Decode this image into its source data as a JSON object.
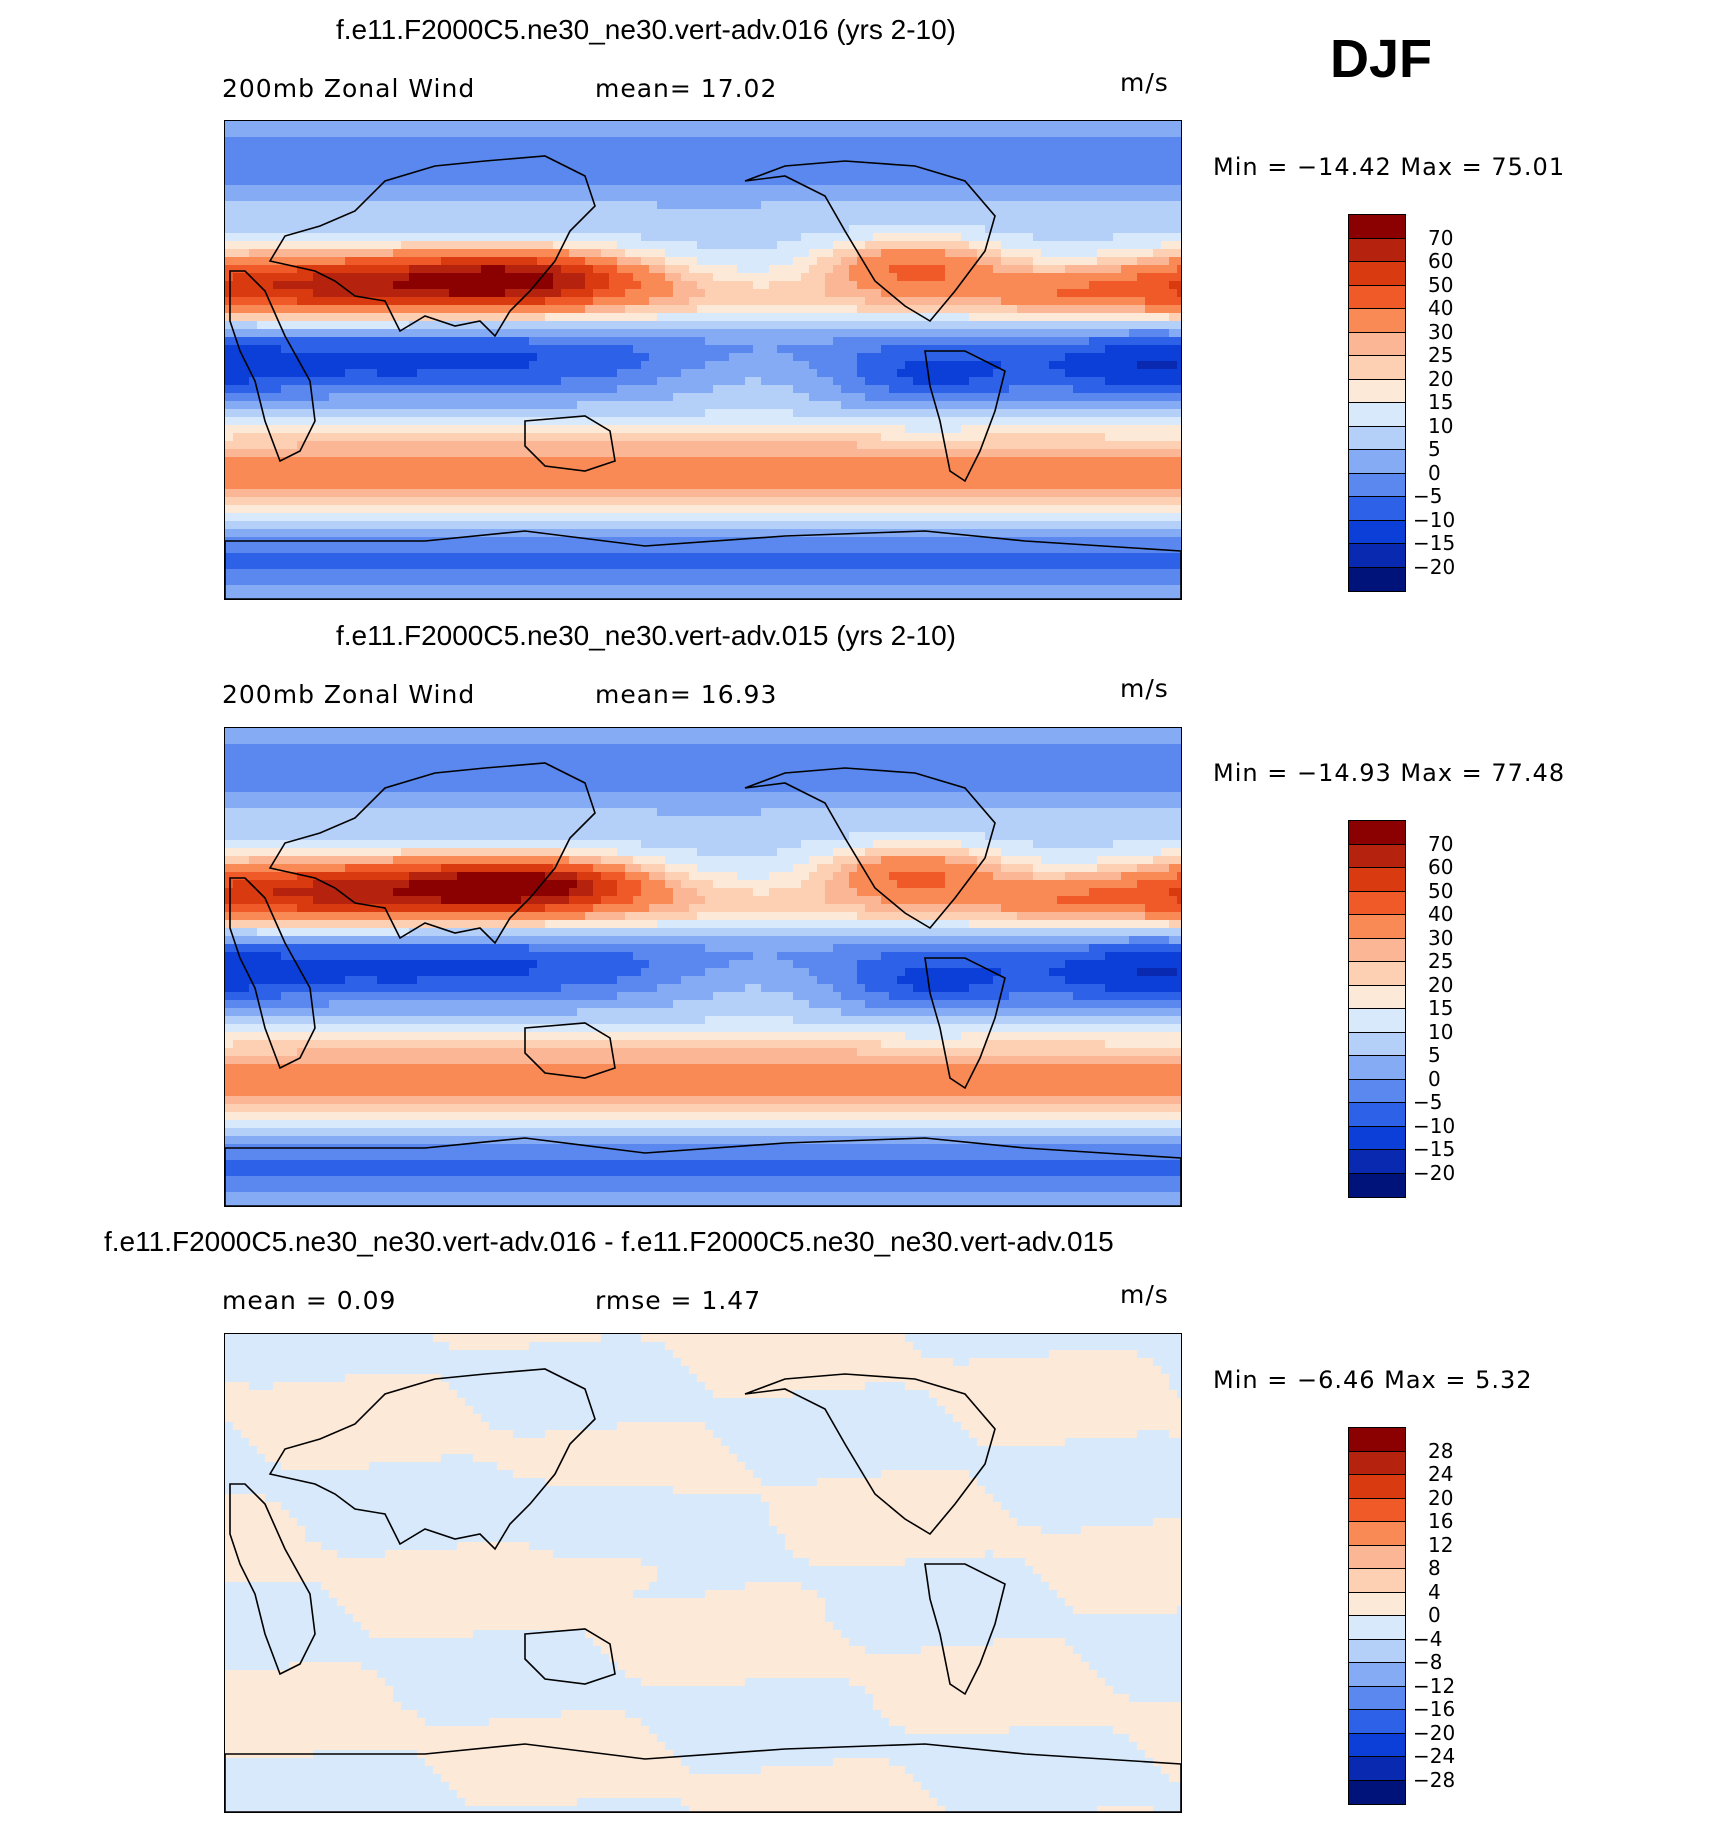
{
  "season": "DJF",
  "chart_data": [
    {
      "type": "heatmap",
      "title": "f.e11.F2000C5.ne30_ne30.vert-adv.016 (yrs 2-10)",
      "left_label": "200mb Zonal Wind",
      "center_label": "mean=   17.02",
      "units": "m/s",
      "stats": {
        "min_label": "Min  =  −14.42  Max  =    75.01",
        "min": -14.42,
        "max": 75.01
      },
      "colorbar": {
        "levels": [
          "70",
          "60",
          "50",
          "40",
          "30",
          "25",
          "20",
          "15",
          "10",
          "5",
          "0",
          "−5",
          "−10",
          "−15",
          "−20"
        ],
        "colors": [
          "#8b0000",
          "#b5220d",
          "#d93a10",
          "#f05a28",
          "#fa8a55",
          "#fbb696",
          "#fdd0b4",
          "#fde9d7",
          "#d7e9fb",
          "#b4cff8",
          "#86abf5",
          "#5a88ef",
          "#2d62e8",
          "#0c3ed8",
          "#0929b0",
          "#00137a"
        ]
      },
      "field": {
        "jets": [
          [
            -130,
            22,
            12,
            5,
            70
          ],
          [
            -60,
            22,
            18,
            7,
            45
          ],
          [
            20,
            40,
            25,
            6,
            40
          ],
          [
            60,
            10,
            40,
            8,
            25
          ],
          [
            -20,
            22,
            10,
            4,
            55
          ]
        ],
        "blue_patches": [
          [
            -100,
            -100,
            0,
            0,
            0
          ]
        ],
        "south_jets": [
          [
            -45,
            30,
            10,
            20,
            30
          ]
        ],
        "anomalies": []
      }
    },
    {
      "type": "heatmap",
      "title": "f.e11.F2000C5.ne30_ne30.vert-adv.015 (yrs 2-10)",
      "left_label": "200mb Zonal Wind",
      "center_label": "mean=   16.93",
      "units": "m/s",
      "stats": {
        "min_label": "Min  =  −14.93  Max  =    77.48",
        "min": -14.93,
        "max": 77.48
      },
      "colorbar": {
        "levels": [
          "70",
          "60",
          "50",
          "40",
          "30",
          "25",
          "20",
          "15",
          "10",
          "5",
          "0",
          "−5",
          "−10",
          "−15",
          "−20"
        ],
        "colors": [
          "#8b0000",
          "#b5220d",
          "#d93a10",
          "#f05a28",
          "#fa8a55",
          "#fbb696",
          "#fdd0b4",
          "#fde9d7",
          "#d7e9fb",
          "#b4cff8",
          "#86abf5",
          "#5a88ef",
          "#2d62e8",
          "#0c3ed8",
          "#0929b0",
          "#00137a"
        ]
      }
    },
    {
      "type": "heatmap",
      "title": "f.e11.F2000C5.ne30_ne30.vert-adv.016 - f.e11.F2000C5.ne30_ne30.vert-adv.015",
      "left_label": "mean =      0.09",
      "center_label": "rmse =      1.47",
      "units": "m/s",
      "stats": {
        "min_label": "Min  =     −6.46  Max  =      5.32",
        "min": -6.46,
        "max": 5.32
      },
      "colorbar": {
        "levels": [
          "28",
          "24",
          "20",
          "16",
          "12",
          "8",
          "4",
          "0",
          "−4",
          "−8",
          "−12",
          "−16",
          "−20",
          "−24",
          "−28"
        ],
        "colors": [
          "#8b0000",
          "#b5220d",
          "#d93a10",
          "#f05a28",
          "#fa8a55",
          "#fbb696",
          "#fdd0b4",
          "#fde9d7",
          "#d7e9fb",
          "#b4cff8",
          "#86abf5",
          "#5a88ef",
          "#2d62e8",
          "#0c3ed8",
          "#0929b0",
          "#00137a"
        ]
      }
    }
  ]
}
